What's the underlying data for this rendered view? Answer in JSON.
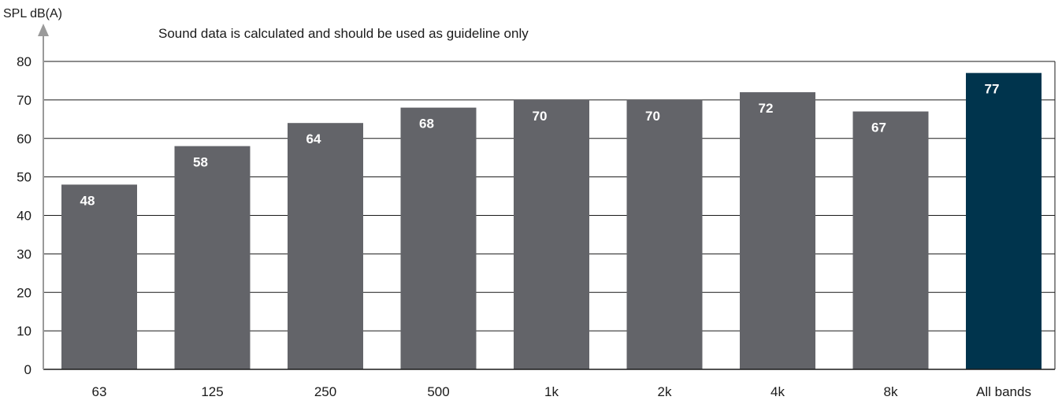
{
  "chart_data": {
    "type": "bar",
    "title": "",
    "annotation": "Sound data is calculated and should be used as guideline only",
    "ylabel": "SPL dB(A)",
    "xlabel": "",
    "categories": [
      "63",
      "125",
      "250",
      "500",
      "1k",
      "2k",
      "4k",
      "8k",
      "All bands"
    ],
    "values": [
      48,
      58,
      64,
      68,
      70,
      70,
      72,
      67,
      77
    ],
    "data_labels": [
      "48",
      "58",
      "64",
      "68",
      "70",
      "70",
      "72",
      "67",
      "77"
    ],
    "ylim": [
      0,
      80
    ],
    "yticks": [
      0,
      10,
      20,
      30,
      40,
      50,
      60,
      70,
      80
    ],
    "ytick_labels": [
      "0",
      "10",
      "20",
      "30",
      "40",
      "50",
      "60",
      "70",
      "80"
    ],
    "grid": true,
    "legend": "none",
    "colors": {
      "bar": "#636469",
      "highlight_bar": "#00344d",
      "axis": "#1a1a1a",
      "arrow": "#9a9a9a",
      "data_label": "#ffffff"
    },
    "highlight_category": "All bands"
  }
}
